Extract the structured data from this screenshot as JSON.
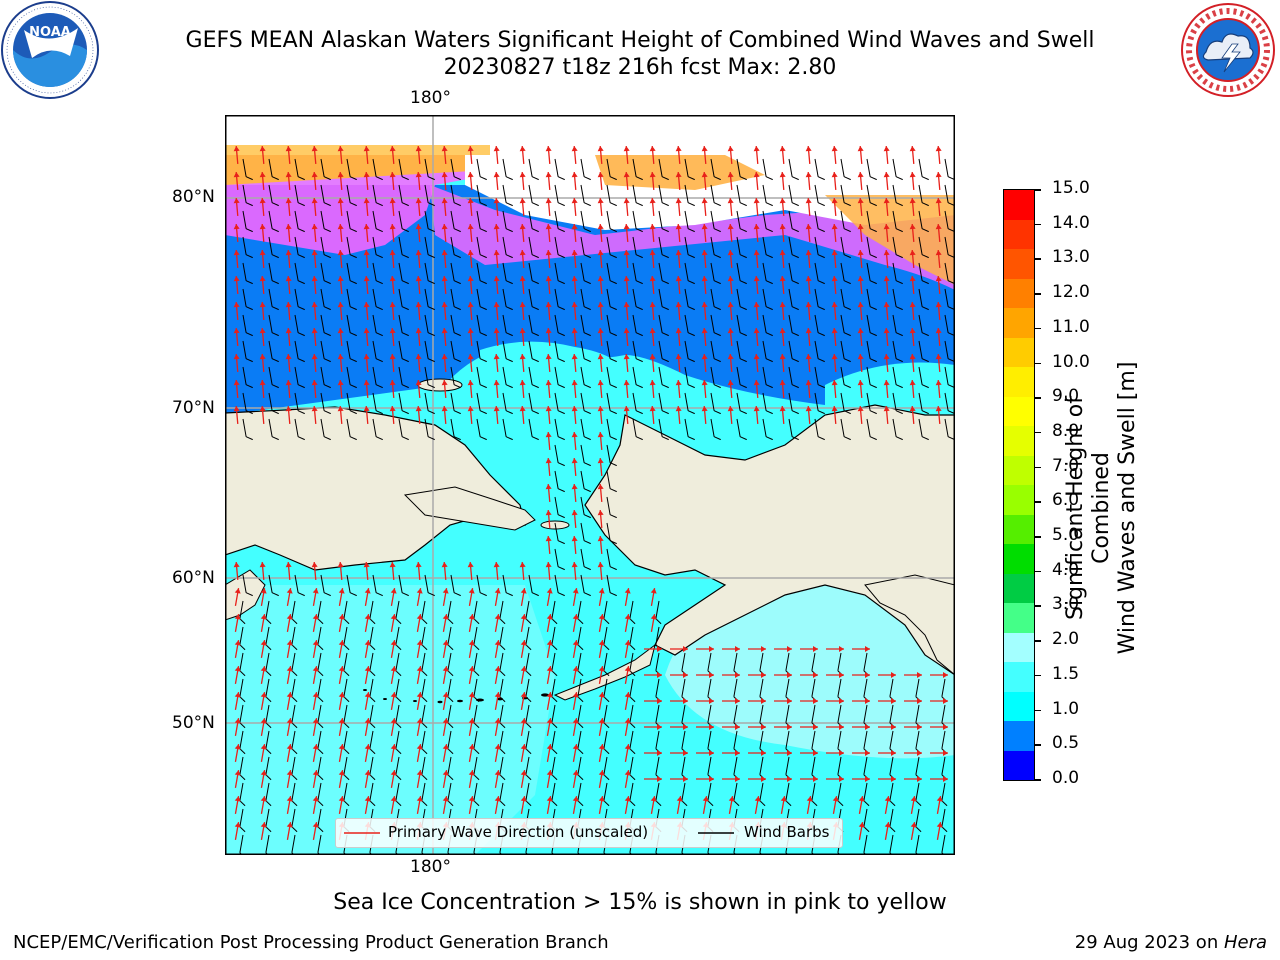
{
  "header": {
    "title_line1": "GEFS MEAN Alaskan Waters Significant Height of Combined Wind Waves and Swell",
    "title_line2": "20230827 t18z 216h fcst   Max: 2.80"
  },
  "logos": {
    "left": {
      "name": "NOAA",
      "ring_text": "NATIONAL OCEANIC AND ATMOSPHERIC ADMINISTRATION",
      "bottom_text": "U.S. DEPARTMENT OF COMMERCE"
    },
    "right": {
      "ring_text": "NATIONAL WEATHER SERVICE"
    }
  },
  "map": {
    "lon_label_top": "180°",
    "lon_label_bottom": "180°",
    "lat_labels": [
      "80°N",
      "70°N",
      "60°N",
      "50°N"
    ],
    "legend": {
      "wave_label": "Primary Wave Direction (unscaled)",
      "wind_label": "Wind Barbs",
      "wave_color": "#e8201a",
      "wind_color": "#000000"
    },
    "colors": {
      "land": "#efeddc",
      "ice_free_deep": "#0a7cf5",
      "sea_cyan": "#44ffff",
      "sea_pale": "#9dfcfc",
      "ice_pink": "#ff66ff",
      "ice_orange": "#ffb347"
    }
  },
  "colorbar": {
    "label_line1": "Significant Height of Combined",
    "label_line2": "Wind Waves and Swell [m]",
    "ticks": [
      "15.0",
      "14.0",
      "13.0",
      "12.0",
      "11.0",
      "10.0",
      "9.0",
      "8.0",
      "7.0",
      "6.0",
      "5.0",
      "4.0",
      "3.0",
      "2.0",
      "1.5",
      "1.0",
      "0.5",
      "0.0"
    ],
    "colors_top_to_bottom": [
      "#ff0000",
      "#ff3300",
      "#ff5500",
      "#ff8000",
      "#ffa500",
      "#ffcc00",
      "#ffee00",
      "#ffff00",
      "#e5ff00",
      "#bfff00",
      "#99ff00",
      "#55ee00",
      "#00dd00",
      "#00cc44",
      "#44ff88",
      "#a3ffff",
      "#44ffff",
      "#00ffff",
      "#0080ff",
      "#0000ff"
    ]
  },
  "sea_ice_note": "Sea Ice Concentration > 15% is shown in pink to yellow",
  "footer": {
    "left": "NCEP/EMC/Verification Post Processing Product Generation Branch",
    "right_prefix": "29 Aug 2023 on ",
    "right_host": "Hera"
  }
}
